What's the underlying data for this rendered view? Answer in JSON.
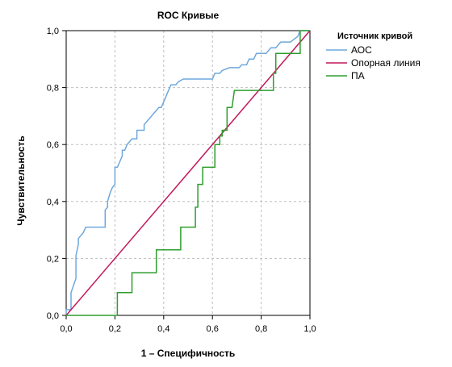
{
  "chart_data": {
    "type": "line",
    "title": "ROC Кривые",
    "xlabel": "1 – Специфичность",
    "ylabel": "Чувствительность",
    "xlim": [
      0,
      1
    ],
    "ylim": [
      0,
      1
    ],
    "xticks": [
      "0,0",
      "0,2",
      "0,4",
      "0,6",
      "0,8",
      "1,0"
    ],
    "yticks": [
      "0,0",
      "0,2",
      "0,4",
      "0,6",
      "0,8",
      "1,0"
    ],
    "grid": true,
    "legend": {
      "title": "Источник кривой",
      "placement": "right"
    },
    "series": [
      {
        "name": "АОС",
        "color": "#6fa8dc",
        "x": [
          0.0,
          0.0,
          0.02,
          0.02,
          0.04,
          0.04,
          0.05,
          0.05,
          0.07,
          0.08,
          0.16,
          0.16,
          0.17,
          0.17,
          0.18,
          0.19,
          0.2,
          0.2,
          0.21,
          0.23,
          0.23,
          0.24,
          0.25,
          0.27,
          0.29,
          0.29,
          0.32,
          0.32,
          0.34,
          0.38,
          0.39,
          0.4,
          0.41,
          0.42,
          0.43,
          0.45,
          0.46,
          0.48,
          0.5,
          0.6,
          0.61,
          0.63,
          0.64,
          0.67,
          0.71,
          0.72,
          0.74,
          0.75,
          0.77,
          0.78,
          0.79,
          0.82,
          0.84,
          0.86,
          0.88,
          0.9,
          0.92,
          0.95,
          0.95,
          0.96,
          0.96,
          1.0
        ],
        "y": [
          0.0,
          0.02,
          0.02,
          0.08,
          0.13,
          0.21,
          0.25,
          0.27,
          0.29,
          0.31,
          0.31,
          0.37,
          0.38,
          0.4,
          0.43,
          0.45,
          0.46,
          0.52,
          0.52,
          0.56,
          0.58,
          0.58,
          0.6,
          0.62,
          0.62,
          0.65,
          0.65,
          0.67,
          0.69,
          0.73,
          0.73,
          0.75,
          0.77,
          0.79,
          0.81,
          0.81,
          0.82,
          0.83,
          0.83,
          0.83,
          0.85,
          0.85,
          0.86,
          0.87,
          0.87,
          0.88,
          0.88,
          0.9,
          0.9,
          0.92,
          0.92,
          0.92,
          0.94,
          0.94,
          0.96,
          0.96,
          0.96,
          0.98,
          0.98,
          1.0,
          1.0,
          1.0
        ]
      },
      {
        "name": "Опорная линия",
        "color": "#c2185b",
        "x": [
          0.0,
          1.0
        ],
        "y": [
          0.0,
          1.0
        ]
      },
      {
        "name": "ПА",
        "color": "#2e9e2e",
        "x": [
          0.0,
          0.21,
          0.21,
          0.27,
          0.27,
          0.37,
          0.37,
          0.47,
          0.47,
          0.53,
          0.53,
          0.54,
          0.54,
          0.56,
          0.56,
          0.61,
          0.61,
          0.63,
          0.63,
          0.64,
          0.64,
          0.66,
          0.66,
          0.68,
          0.69,
          0.7,
          0.7,
          0.85,
          0.85,
          0.86,
          0.86,
          0.96,
          0.96,
          1.0
        ],
        "y": [
          0.0,
          0.0,
          0.08,
          0.08,
          0.15,
          0.15,
          0.23,
          0.23,
          0.31,
          0.31,
          0.38,
          0.38,
          0.46,
          0.46,
          0.52,
          0.52,
          0.6,
          0.6,
          0.63,
          0.63,
          0.65,
          0.65,
          0.73,
          0.73,
          0.79,
          0.79,
          0.79,
          0.79,
          0.85,
          0.85,
          0.92,
          0.92,
          1.0,
          1.0
        ]
      }
    ]
  }
}
